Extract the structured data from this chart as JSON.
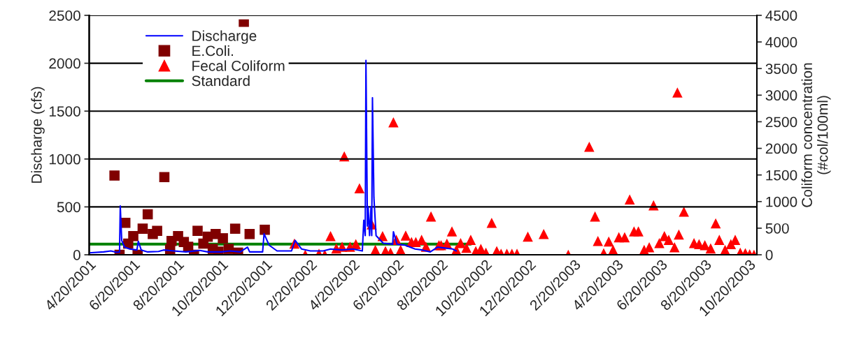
{
  "chart_data": {
    "type": "line",
    "ylabel": "Discharge (cfs)",
    "y2label": "Coliform concentration\n(#col/100ml)",
    "xlim": [
      "2001-04-20",
      "2003-10-31"
    ],
    "xticks": [
      {
        "value": "2001-04-20",
        "label": "4/20/2001"
      },
      {
        "value": "2001-06-20",
        "label": "6/20/2001"
      },
      {
        "value": "2001-08-20",
        "label": "8/20/2001"
      },
      {
        "value": "2001-10-20",
        "label": "10/20/2001"
      },
      {
        "value": "2001-12-20",
        "label": "12/20/2001"
      },
      {
        "value": "2002-02-20",
        "label": "2/20/2002"
      },
      {
        "value": "2002-04-20",
        "label": "4/20/2002"
      },
      {
        "value": "2002-06-20",
        "label": "6/20/2002"
      },
      {
        "value": "2002-08-20",
        "label": "8/20/2002"
      },
      {
        "value": "2002-10-20",
        "label": "10/20/2002"
      },
      {
        "value": "2002-12-20",
        "label": "12/20/2002"
      },
      {
        "value": "2003-02-20",
        "label": "2/20/2003"
      },
      {
        "value": "2003-04-20",
        "label": "4/20/2003"
      },
      {
        "value": "2003-06-20",
        "label": "6/20/2003"
      },
      {
        "value": "2003-08-20",
        "label": "8/20/2003"
      },
      {
        "value": "2003-10-20",
        "label": "10/20/2003"
      }
    ],
    "ylim": [
      0,
      2500
    ],
    "yticks": [
      0,
      500,
      1000,
      1500,
      2000,
      2500
    ],
    "y2lim": [
      0,
      4500
    ],
    "y2ticks": [
      0,
      500,
      1000,
      1500,
      2000,
      2500,
      3000,
      3500,
      4000,
      4500
    ],
    "grid": "y",
    "legend": "top left",
    "series": [
      {
        "name": "Discharge",
        "type": "line",
        "axis": "y",
        "color": "#0000ff",
        "marker": "none",
        "line_style": "solid",
        "x": [
          "2001-04-20",
          "2001-05-10",
          "2001-05-20",
          "2001-05-28",
          "2001-06-01",
          "2001-06-02",
          "2001-06-04",
          "2001-06-08",
          "2001-06-15",
          "2001-06-25",
          "2001-06-27",
          "2001-07-01",
          "2001-07-10",
          "2001-07-25",
          "2001-08-01",
          "2001-08-15",
          "2001-09-01",
          "2001-09-20",
          "2001-10-01",
          "2001-10-20",
          "2001-11-01",
          "2001-11-15",
          "2001-11-25",
          "2001-11-28",
          "2001-12-10",
          "2001-12-16",
          "2001-12-18",
          "2001-12-25",
          "2002-01-05",
          "2002-01-25",
          "2002-01-30",
          "2002-02-08",
          "2002-02-20",
          "2002-03-10",
          "2002-03-20",
          "2002-04-05",
          "2002-04-20",
          "2002-05-03",
          "2002-05-05",
          "2002-05-07",
          "2002-05-08",
          "2002-05-10",
          "2002-05-11",
          "2002-05-13",
          "2002-05-15",
          "2002-05-16",
          "2002-05-17",
          "2002-05-19",
          "2002-05-22",
          "2002-06-01",
          "2002-06-14",
          "2002-06-15",
          "2002-06-20",
          "2002-07-01",
          "2002-07-15",
          "2002-07-25",
          "2002-08-05",
          "2002-08-15",
          "2002-08-25",
          "2002-09-05",
          "2002-09-10"
        ],
        "values": [
          20,
          30,
          40,
          25,
          30,
          510,
          150,
          80,
          60,
          50,
          140,
          50,
          30,
          35,
          50,
          40,
          30,
          45,
          30,
          30,
          40,
          30,
          80,
          30,
          30,
          30,
          220,
          100,
          40,
          40,
          150,
          60,
          40,
          40,
          60,
          50,
          60,
          40,
          360,
          200,
          2030,
          300,
          500,
          200,
          500,
          200,
          1640,
          600,
          200,
          120,
          110,
          240,
          110,
          100,
          60,
          50,
          30,
          80,
          70,
          60,
          40
        ]
      },
      {
        "name": "E.Coli.",
        "type": "scatter",
        "axis": "y2",
        "color": "#800000",
        "marker": "square",
        "x": [
          "2001-05-25",
          "2001-06-01",
          "2001-06-09",
          "2001-06-13",
          "2001-06-20",
          "2001-06-26",
          "2001-07-03",
          "2001-07-10",
          "2001-07-17",
          "2001-07-23",
          "2001-08-02",
          "2001-08-10",
          "2001-08-12",
          "2001-08-21",
          "2001-08-29",
          "2001-09-04",
          "2001-09-12",
          "2001-09-17",
          "2001-09-25",
          "2001-10-01",
          "2001-10-08",
          "2001-10-12",
          "2001-10-16",
          "2001-10-22",
          "2001-10-30",
          "2001-11-08",
          "2001-11-12",
          "2001-11-20",
          "2001-11-28",
          "2001-12-19"
        ],
        "values": [
          1490,
          0,
          600,
          210,
          350,
          0,
          490,
          760,
          390,
          450,
          1460,
          100,
          260,
          350,
          240,
          150,
          0,
          450,
          210,
          340,
          110,
          390,
          60,
          310,
          110,
          490,
          40,
          4330,
          390,
          470
        ]
      },
      {
        "name": "Fecal Coliform",
        "type": "scatter",
        "axis": "y2",
        "color": "#ff0000",
        "marker": "triangle",
        "x": [
          "2002-01-29",
          "2002-02-13",
          "2002-03-04",
          "2002-03-12",
          "2002-03-20",
          "2002-03-28",
          "2002-04-05",
          "2002-04-08",
          "2002-04-16",
          "2002-04-24",
          "2002-04-29",
          "2002-05-16",
          "2002-05-21",
          "2002-05-31",
          "2002-06-04",
          "2002-06-11",
          "2002-06-15",
          "2002-06-19",
          "2002-06-25",
          "2002-07-02",
          "2002-07-10",
          "2002-07-16",
          "2002-07-24",
          "2002-07-30",
          "2002-08-06",
          "2002-08-17",
          "2002-08-20",
          "2002-08-28",
          "2002-09-04",
          "2002-09-10",
          "2002-09-16",
          "2002-09-24",
          "2002-09-30",
          "2002-10-07",
          "2002-10-14",
          "2002-10-21",
          "2002-10-29",
          "2002-11-05",
          "2002-11-11",
          "2002-11-19",
          "2002-11-26",
          "2002-12-03",
          "2002-12-18",
          "2003-01-09",
          "2003-02-12",
          "2003-03-13",
          "2003-03-21",
          "2003-03-25",
          "2003-04-02",
          "2003-04-09",
          "2003-04-15",
          "2003-04-23",
          "2003-05-01",
          "2003-05-08",
          "2003-05-14",
          "2003-05-20",
          "2003-05-28",
          "2003-06-04",
          "2003-06-10",
          "2003-06-18",
          "2003-06-25",
          "2003-07-01",
          "2003-07-09",
          "2003-07-13",
          "2003-07-15",
          "2003-07-22",
          "2003-08-05",
          "2003-08-12",
          "2003-08-20",
          "2003-08-28",
          "2003-09-04",
          "2003-09-09",
          "2003-09-17",
          "2003-09-25",
          "2003-10-01",
          "2003-10-08",
          "2003-10-15",
          "2003-10-21",
          "2003-10-27"
        ],
        "values": [
          210,
          0,
          20,
          0,
          350,
          120,
          150,
          1850,
          150,
          200,
          1250,
          570,
          90,
          350,
          70,
          40,
          2490,
          280,
          90,
          360,
          240,
          240,
          280,
          150,
          720,
          180,
          180,
          210,
          440,
          90,
          220,
          130,
          280,
          70,
          110,
          40,
          600,
          70,
          20,
          20,
          20,
          20,
          340,
          390,
          0,
          2030,
          720,
          260,
          30,
          250,
          90,
          330,
          330,
          1040,
          440,
          440,
          90,
          140,
          930,
          220,
          350,
          280,
          140,
          3050,
          380,
          810,
          220,
          200,
          180,
          120,
          590,
          280,
          90,
          200,
          280,
          40,
          30,
          10,
          0
        ]
      },
      {
        "name": "Standard",
        "type": "line",
        "axis": "y2",
        "color": "#008000",
        "marker": "none",
        "line_style": "solid",
        "x": [
          "2001-04-20",
          "2002-09-30"
        ],
        "values": [
          200,
          200
        ]
      }
    ]
  }
}
